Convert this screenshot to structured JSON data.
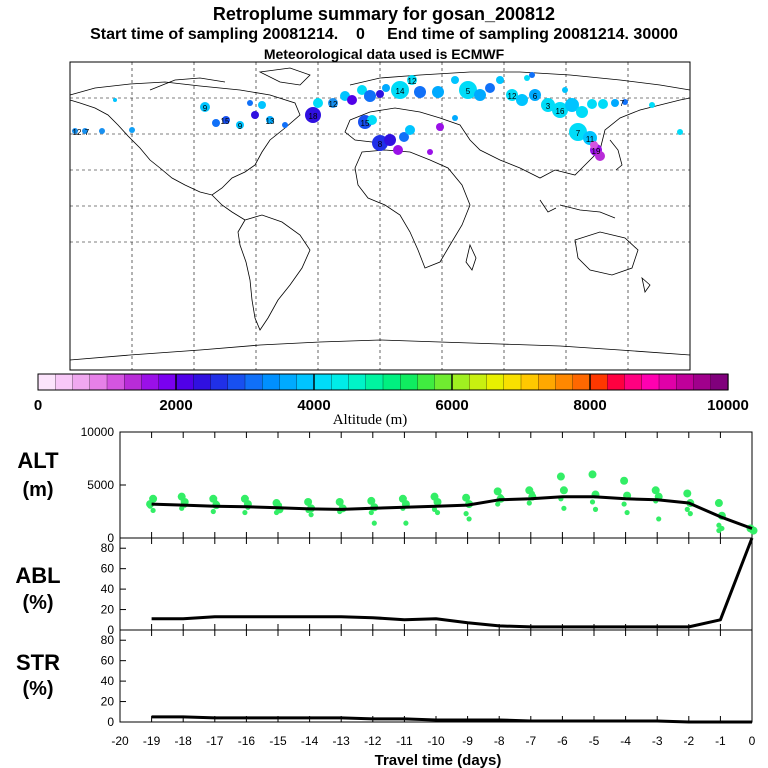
{
  "header": {
    "title": "Retroplume summary for gosan_200812",
    "sampling": "Start time of sampling 20081214.    0     End time of sampling 20081214. 30000",
    "met": "Meteorological data used is ECMWF"
  },
  "colorbar": {
    "ticks": [
      "0",
      "2000",
      "4000",
      "6000",
      "8000",
      "10000"
    ],
    "label": "Altitude (m)",
    "colors": [
      "#fce4fc",
      "#f8c8f8",
      "#f0a8f0",
      "#e680e8",
      "#d455e0",
      "#b82cd8",
      "#9a10e8",
      "#7a00f0",
      "#5000e8",
      "#3010e0",
      "#2030e8",
      "#1850f0",
      "#1070f8",
      "#0090ff",
      "#00aaff",
      "#00c4ff",
      "#00dcf8",
      "#00ece8",
      "#00f4c8",
      "#00f4a0",
      "#00f080",
      "#10ec60",
      "#40ec40",
      "#70ec30",
      "#a0f020",
      "#c8f010",
      "#e8f000",
      "#f8e000",
      "#ffc800",
      "#ffa800",
      "#ff8800",
      "#ff6800",
      "#ff3800",
      "#ff0040",
      "#ff0080",
      "#ff00b0",
      "#e000a8",
      "#c0009a",
      "#a0008c",
      "#80007c"
    ]
  },
  "map": {
    "labels": [
      "12",
      "7",
      "9",
      "15",
      "9",
      "13",
      "18",
      "12",
      "15",
      "8",
      "14",
      "12",
      "5",
      "12",
      "6",
      "3",
      "16",
      "7",
      "11",
      "19",
      "7"
    ]
  },
  "chart_data": [
    {
      "type": "line",
      "name": "ALT",
      "ylabel": "ALT",
      "yunit": "(m)",
      "ylim": [
        0,
        10000
      ],
      "yticks": [
        "10000",
        "5000",
        "0"
      ],
      "x": [
        -19,
        -18,
        -17,
        -16,
        -15,
        -14,
        -13,
        -12,
        -11,
        -10,
        -9,
        -8,
        -7,
        -6,
        -5,
        -4,
        -3,
        -2,
        -1,
        0
      ],
      "values": [
        3200,
        3100,
        3000,
        2950,
        2850,
        2750,
        2700,
        2800,
        2900,
        3000,
        3100,
        3600,
        3700,
        3900,
        3900,
        3700,
        3600,
        3300,
        2000,
        900
      ]
    },
    {
      "type": "line",
      "name": "ABL",
      "ylabel": "ABL",
      "yunit": "(%)",
      "ylim": [
        0,
        90
      ],
      "yticks": [
        "80",
        "60",
        "40",
        "20",
        "0"
      ],
      "x": [
        -19,
        -18,
        -17,
        -16,
        -15,
        -14,
        -13,
        -12,
        -11,
        -10,
        -9,
        -8,
        -7,
        -6,
        -5,
        -4,
        -3,
        -2,
        -1,
        0
      ],
      "values": [
        11,
        11,
        13,
        13,
        13,
        13,
        13,
        12,
        10,
        11,
        7,
        4,
        3,
        3,
        3,
        3,
        3,
        3,
        10,
        90
      ]
    },
    {
      "type": "line",
      "name": "STR",
      "ylabel": "STR",
      "yunit": "(%)",
      "ylim": [
        0,
        90
      ],
      "yticks": [
        "80",
        "60",
        "40",
        "20",
        "0"
      ],
      "x": [
        -19,
        -18,
        -17,
        -16,
        -15,
        -14,
        -13,
        -12,
        -11,
        -10,
        -9,
        -8,
        -7,
        -6,
        -5,
        -4,
        -3,
        -2,
        -1,
        0
      ],
      "values": [
        5,
        5,
        4,
        4,
        4,
        4,
        4,
        3,
        3,
        2,
        2,
        2,
        1,
        1,
        1,
        1,
        1,
        0,
        0,
        0
      ]
    }
  ],
  "xaxis": {
    "ticks": [
      "-20",
      "-19",
      "-18",
      "-17",
      "-16",
      "-15",
      "-14",
      "-13",
      "-12",
      "-11",
      "-10",
      "-9",
      "-8",
      "-7",
      "-6",
      "-5",
      "-4",
      "-3",
      "-2",
      "-1",
      "0"
    ],
    "label": "Travel time (days)"
  }
}
